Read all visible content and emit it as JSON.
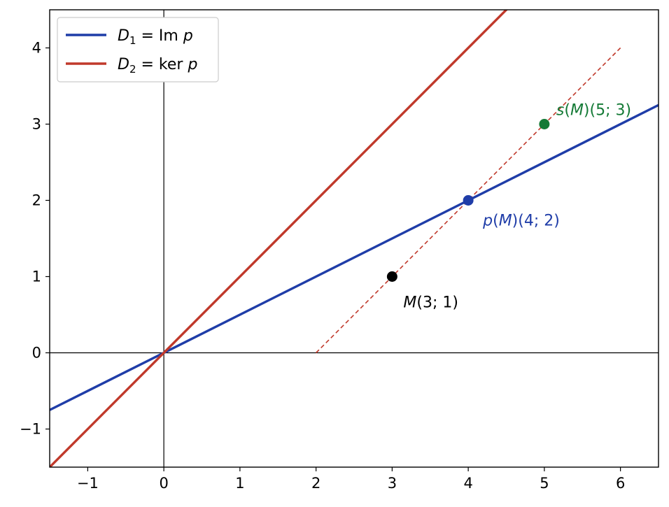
{
  "chart_data": {
    "type": "line",
    "xlim": [
      -1.5,
      6.5
    ],
    "ylim": [
      -1.5,
      4.5
    ],
    "x_ticks": [
      -1,
      0,
      1,
      2,
      3,
      4,
      5,
      6
    ],
    "y_ticks": [
      -1,
      0,
      1,
      2,
      3,
      4
    ],
    "x_tick_labels": [
      "−1",
      "0",
      "1",
      "2",
      "3",
      "4",
      "5",
      "6"
    ],
    "y_tick_labels": [
      "−1",
      "0",
      "1",
      "2",
      "3",
      "4"
    ],
    "grid": false,
    "legend_position": "top-left",
    "series": [
      {
        "name": "D_1 = Im p",
        "legend_math": "D1_im",
        "equation": "y = x/2",
        "slope": 0.5,
        "intercept": 0,
        "color": "#1f3da8",
        "style": "solid"
      },
      {
        "name": "D_2 = ker p",
        "legend_math": "D2_ker",
        "equation": "y = x",
        "slope": 1,
        "intercept": 0,
        "color": "#c0392b",
        "style": "solid"
      }
    ],
    "projection_line": {
      "from": [
        2,
        0
      ],
      "to": [
        6,
        4
      ],
      "color": "#c0392b",
      "style": "dashed"
    },
    "points": [
      {
        "label": "M(3; 1)",
        "x": 3,
        "y": 1,
        "color": "#000000"
      },
      {
        "label": "p(M)(4; 2)",
        "x": 4,
        "y": 2,
        "color": "#1f3da8"
      },
      {
        "label": "s(M)(5; 3)",
        "x": 5,
        "y": 3,
        "color": "#147a36"
      }
    ],
    "legend": {
      "entries": [
        {
          "D": "D",
          "sub": "1",
          "eq": " = Im ",
          "var": "p",
          "color": "#1f3da8"
        },
        {
          "D": "D",
          "sub": "2",
          "eq": " = ker ",
          "var": "p",
          "color": "#c0392b"
        }
      ]
    },
    "annotations": [
      {
        "point_index": 0,
        "name_italic": "M",
        "rest": "(3; 1)"
      },
      {
        "point_index": 1,
        "name_italic": "p",
        "mid": "(",
        "name2_italic": "M",
        "rest": ")(4; 2)"
      },
      {
        "point_index": 2,
        "name_italic": "s",
        "mid": "(",
        "name2_italic": "M",
        "rest": ")(5; 3)"
      }
    ]
  }
}
